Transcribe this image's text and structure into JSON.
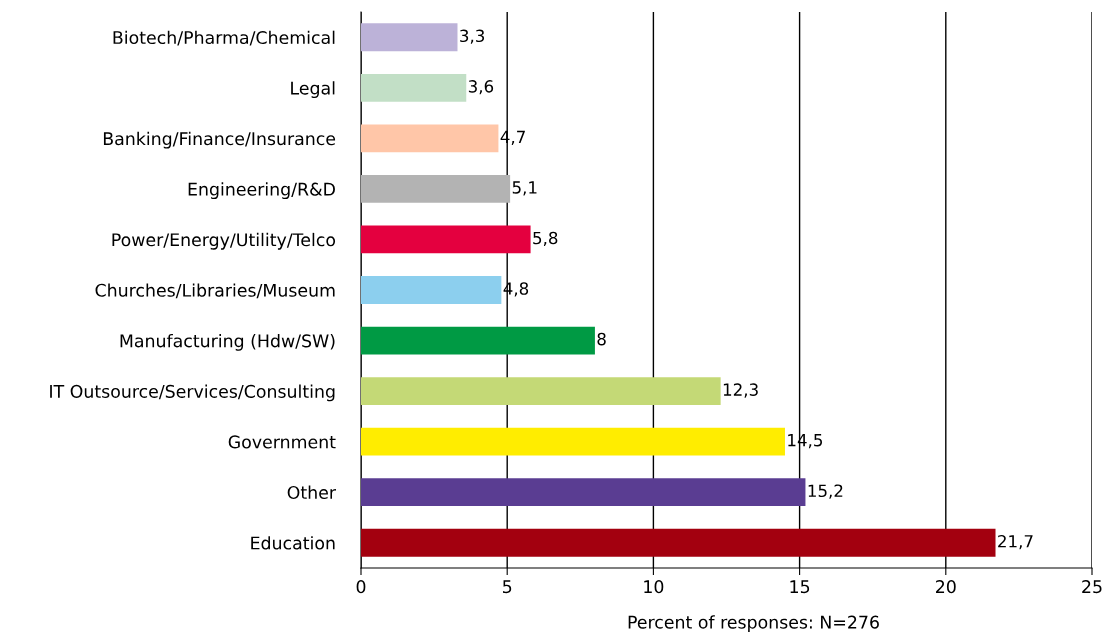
{
  "chart_data": {
    "type": "bar",
    "orientation": "horizontal",
    "xlabel": "Percent of responses: N=276",
    "categories": [
      "Biotech/Pharma/Chemical",
      "Legal",
      "Banking/Finance/Insurance",
      "Engineering/R&D",
      "Power/Energy/Utility/Telco",
      "Churches/Libraries/Museum",
      "Manufacturing (Hdw/SW)",
      "IT Outsource/Services/Consulting",
      "Government",
      "Other",
      "Education"
    ],
    "values": [
      3.3,
      3.6,
      4.7,
      5.1,
      5.8,
      4.8,
      8,
      12.3,
      14.5,
      15.2,
      21.7
    ],
    "value_labels": [
      "3,3",
      "3,6",
      "4,7",
      "5,1",
      "5,8",
      "4,8",
      "8",
      "12,3",
      "14,5",
      "15,2",
      "21,7"
    ],
    "colors": [
      "#bcb2d8",
      "#c2dfc6",
      "#ffc6a8",
      "#b3b3b3",
      "#e4003f",
      "#8ccfee",
      "#009a44",
      "#c4d976",
      "#ffed00",
      "#5a3d92",
      "#a3000f"
    ],
    "xlim": [
      0,
      25
    ],
    "xticks": [
      0,
      5,
      10,
      15,
      20,
      25
    ],
    "grid": "x"
  }
}
